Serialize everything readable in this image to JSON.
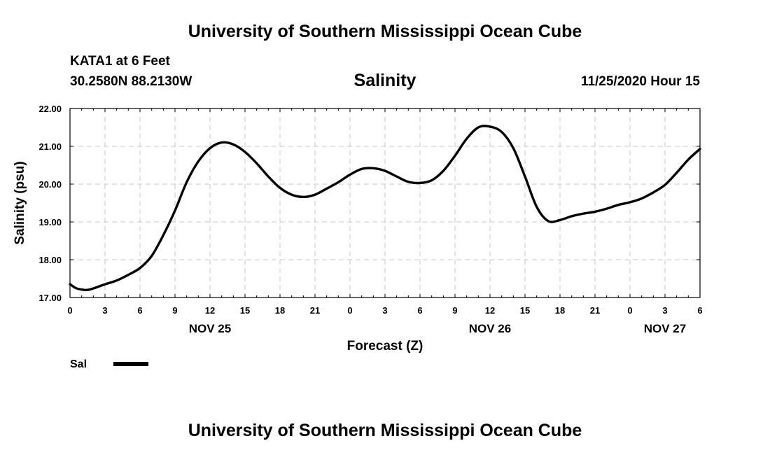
{
  "header": {
    "title_top": "University of Southern Mississippi Ocean Cube",
    "station": "KATA1 at 6 Feet",
    "coords": "30.2580N 88.2130W",
    "chart_title": "Salinity",
    "run_time": "11/25/2020 Hour 15"
  },
  "footer": {
    "title_bottom": "University of Southern Mississippi Ocean Cube"
  },
  "legend": {
    "label": "Sal",
    "color": "#000000"
  },
  "chart_data": {
    "type": "line",
    "title": "Salinity",
    "xlabel": "Forecast (Z)",
    "ylabel": "Salinity (psu)",
    "xlim": [
      0,
      54
    ],
    "ylim": [
      17.0,
      22.0
    ],
    "grid": true,
    "x_ticks": [
      {
        "hour": 0,
        "label": "0"
      },
      {
        "hour": 3,
        "label": "3"
      },
      {
        "hour": 6,
        "label": "6"
      },
      {
        "hour": 9,
        "label": "9"
      },
      {
        "hour": 12,
        "label": "12"
      },
      {
        "hour": 15,
        "label": "15"
      },
      {
        "hour": 18,
        "label": "18"
      },
      {
        "hour": 21,
        "label": "21"
      },
      {
        "hour": 24,
        "label": "0"
      },
      {
        "hour": 27,
        "label": "3"
      },
      {
        "hour": 30,
        "label": "6"
      },
      {
        "hour": 33,
        "label": "9"
      },
      {
        "hour": 36,
        "label": "12"
      },
      {
        "hour": 39,
        "label": "15"
      },
      {
        "hour": 42,
        "label": "18"
      },
      {
        "hour": 45,
        "label": "21"
      },
      {
        "hour": 48,
        "label": "0"
      },
      {
        "hour": 51,
        "label": "3"
      },
      {
        "hour": 54,
        "label": "6"
      }
    ],
    "date_labels": [
      {
        "hour": 12,
        "label": "NOV 25"
      },
      {
        "hour": 36,
        "label": "NOV 26"
      },
      {
        "hour": 51,
        "label": "NOV 27"
      }
    ],
    "y_ticks": [
      {
        "value": 17.0,
        "label": "17.00"
      },
      {
        "value": 18.0,
        "label": "18.00"
      },
      {
        "value": 19.0,
        "label": "19.00"
      },
      {
        "value": 20.0,
        "label": "20.00"
      },
      {
        "value": 21.0,
        "label": "21.00"
      },
      {
        "value": 22.0,
        "label": "22.00"
      }
    ],
    "series": [
      {
        "name": "Sal",
        "color": "#000000",
        "x": [
          0,
          0.5,
          1,
          1.5,
          2,
          3,
          4,
          5,
          6,
          7,
          8,
          9,
          10,
          11,
          12,
          13,
          14,
          15,
          16,
          17,
          18,
          19,
          20,
          21,
          22,
          23,
          24,
          25,
          26,
          27,
          28,
          29,
          30,
          31,
          32,
          33,
          34,
          35,
          36,
          37,
          38,
          39,
          40,
          41,
          42,
          43,
          44,
          45,
          46,
          47,
          48,
          49,
          50,
          51,
          52,
          53,
          54
        ],
        "values": [
          17.35,
          17.25,
          17.21,
          17.2,
          17.24,
          17.35,
          17.45,
          17.6,
          17.78,
          18.1,
          18.65,
          19.3,
          20.05,
          20.6,
          20.95,
          21.1,
          21.05,
          20.85,
          20.55,
          20.2,
          19.9,
          19.72,
          19.66,
          19.72,
          19.88,
          20.05,
          20.25,
          20.4,
          20.42,
          20.35,
          20.2,
          20.06,
          20.03,
          20.1,
          20.35,
          20.75,
          21.2,
          21.5,
          21.52,
          21.38,
          20.95,
          20.2,
          19.4,
          19.02,
          19.05,
          19.15,
          19.22,
          19.27,
          19.35,
          19.45,
          19.52,
          19.62,
          19.78,
          19.98,
          20.3,
          20.65,
          20.93
        ]
      }
    ]
  }
}
